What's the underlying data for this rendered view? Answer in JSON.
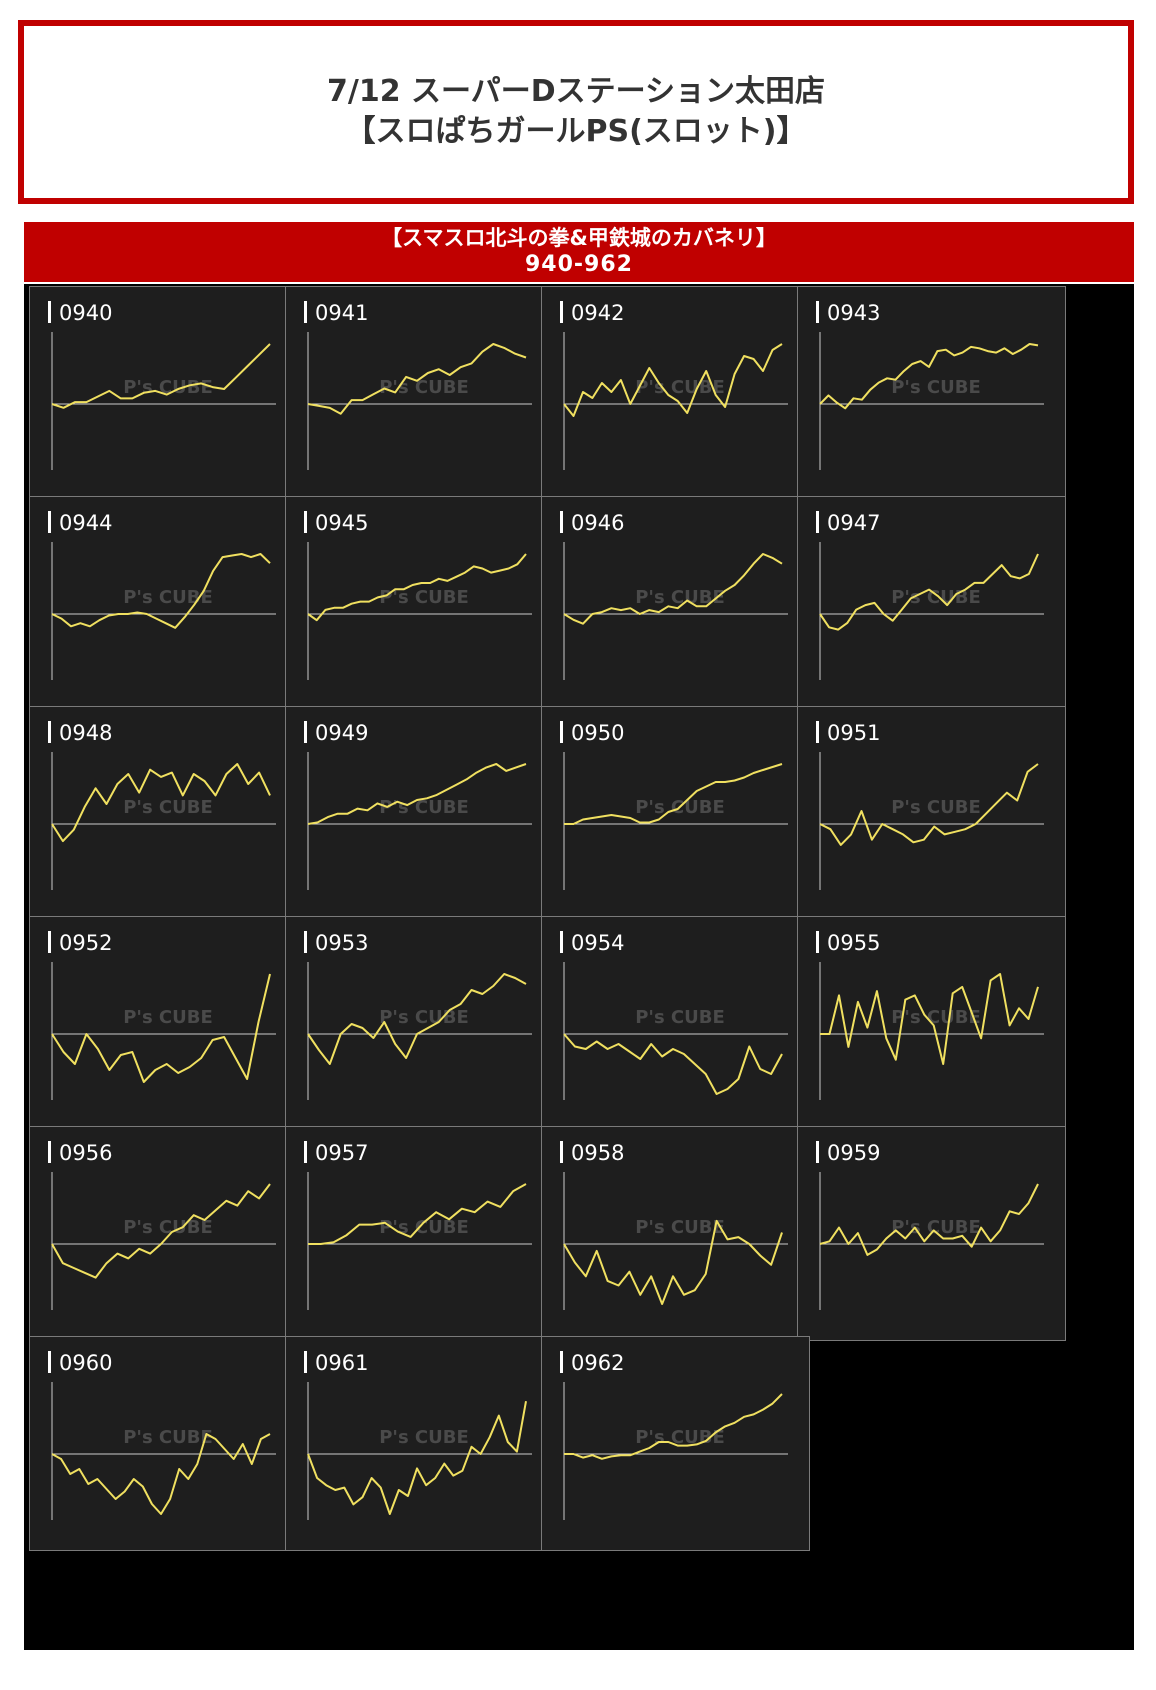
{
  "header": {
    "title_line1": "7/12 スーパーDステーション太田店",
    "title_line2": "【スロぱちガールPS(スロット)】"
  },
  "banner": {
    "machine": "【スマスロ北斗の拳&甲鉄城のカバネリ】",
    "range": "940-962"
  },
  "colors": {
    "frame": "#c00000",
    "tile_bg": "#1e1e1e",
    "line": "#f0e060",
    "axis": "#cccccc",
    "watermark": "#4a4a4a"
  },
  "watermark": "P's CUBE",
  "chart_data": [
    {
      "type": "line",
      "title": "0940",
      "values": [
        0,
        -2,
        1,
        1,
        4,
        7,
        3,
        3,
        6,
        7,
        5,
        8,
        10,
        11,
        9,
        8,
        14,
        20,
        26,
        32
      ]
    },
    {
      "type": "line",
      "title": "0941",
      "values": [
        0,
        -1,
        -2,
        -5,
        2,
        2,
        5,
        8,
        6,
        14,
        12,
        16,
        18,
        15,
        19,
        21,
        27,
        31,
        29,
        26,
        24
      ]
    },
    {
      "type": "line",
      "title": "0942",
      "values": [
        0,
        -4,
        4,
        2,
        7,
        4,
        8,
        0,
        6,
        12,
        7,
        3,
        1,
        -3,
        5,
        11,
        3,
        -1,
        10,
        16,
        15,
        11,
        18,
        20
      ]
    },
    {
      "type": "line",
      "title": "0943",
      "values": [
        0,
        6,
        1,
        -3,
        4,
        3,
        10,
        15,
        18,
        17,
        23,
        28,
        30,
        26,
        37,
        38,
        34,
        36,
        40,
        39,
        37,
        36,
        39,
        35,
        38,
        42,
        41
      ]
    },
    {
      "type": "line",
      "title": "0944",
      "values": [
        0,
        -3,
        -8,
        -6,
        -8,
        -4,
        -1,
        0,
        0,
        1,
        0,
        -3,
        -6,
        -9,
        -2,
        6,
        15,
        28,
        37,
        38,
        39,
        37,
        39,
        33
      ]
    },
    {
      "type": "line",
      "title": "0945",
      "values": [
        0,
        -3,
        2,
        3,
        3,
        5,
        6,
        6,
        8,
        9,
        12,
        12,
        14,
        15,
        15,
        17,
        16,
        18,
        20,
        23,
        22,
        20,
        21,
        22,
        24,
        29
      ]
    },
    {
      "type": "line",
      "title": "0946",
      "values": [
        0,
        -3,
        -5,
        0,
        1,
        3,
        2,
        3,
        0,
        2,
        1,
        4,
        3,
        7,
        4,
        4,
        8,
        12,
        15,
        20,
        26,
        31,
        29,
        26
      ]
    },
    {
      "type": "line",
      "title": "0947",
      "values": [
        0,
        -6,
        -7,
        -4,
        2,
        4,
        5,
        0,
        -3,
        2,
        7,
        9,
        11,
        8,
        4,
        9,
        11,
        14,
        14,
        18,
        22,
        17,
        16,
        18,
        27
      ]
    },
    {
      "type": "line",
      "title": "0948",
      "values": [
        0,
        -12,
        -4,
        12,
        25,
        14,
        28,
        35,
        22,
        38,
        33,
        36,
        20,
        35,
        30,
        20,
        35,
        42,
        28,
        36,
        20
      ]
    },
    {
      "type": "line",
      "title": "0949",
      "values": [
        0,
        1,
        4,
        6,
        6,
        9,
        8,
        12,
        10,
        13,
        11,
        14,
        15,
        17,
        20,
        23,
        26,
        30,
        33,
        35,
        31,
        33,
        35
      ]
    },
    {
      "type": "line",
      "title": "0950",
      "values": [
        0,
        0,
        3,
        4,
        5,
        6,
        5,
        4,
        1,
        1,
        3,
        8,
        10,
        16,
        22,
        25,
        28,
        28,
        29,
        31,
        34,
        36,
        38,
        40
      ]
    },
    {
      "type": "line",
      "title": "0951",
      "values": [
        0,
        -2,
        -8,
        -4,
        5,
        -6,
        0,
        -2,
        -4,
        -7,
        -6,
        -1,
        -4,
        -3,
        -2,
        0,
        4,
        8,
        12,
        9,
        20,
        23
      ]
    },
    {
      "type": "line",
      "title": "0952",
      "values": [
        0,
        -6,
        -10,
        0,
        -5,
        -12,
        -7,
        -6,
        -16,
        -12,
        -10,
        -13,
        -11,
        -8,
        -2,
        -1,
        -8,
        -15,
        4,
        20
      ]
    },
    {
      "type": "line",
      "title": "0953",
      "values": [
        0,
        -8,
        -15,
        0,
        5,
        3,
        -2,
        6,
        -5,
        -12,
        0,
        3,
        6,
        12,
        15,
        22,
        20,
        24,
        30,
        28,
        25
      ]
    },
    {
      "type": "line",
      "title": "0954",
      "values": [
        0,
        -5,
        -6,
        -3,
        -6,
        -4,
        -7,
        -10,
        -4,
        -9,
        -6,
        -8,
        -12,
        -16,
        -24,
        -22,
        -18,
        -5,
        -14,
        -16,
        -8
      ]
    },
    {
      "type": "line",
      "title": "0955",
      "values": [
        0,
        0,
        18,
        -6,
        15,
        3,
        20,
        -2,
        -12,
        16,
        18,
        9,
        4,
        -14,
        19,
        22,
        10,
        -2,
        25,
        28,
        4,
        12,
        7,
        22
      ]
    },
    {
      "type": "line",
      "title": "0956",
      "values": [
        0,
        -8,
        -10,
        -12,
        -14,
        -8,
        -4,
        -6,
        -2,
        -4,
        0,
        5,
        7,
        12,
        10,
        14,
        18,
        16,
        22,
        19,
        25
      ]
    },
    {
      "type": "line",
      "title": "0957",
      "values": [
        0,
        0,
        1,
        5,
        11,
        11,
        12,
        7,
        4,
        12,
        18,
        14,
        20,
        18,
        24,
        21,
        30,
        34
      ]
    },
    {
      "type": "line",
      "title": "0958",
      "values": [
        0,
        -8,
        -14,
        -3,
        -16,
        -18,
        -12,
        -22,
        -14,
        -26,
        -14,
        -22,
        -20,
        -13,
        10,
        2,
        3,
        0,
        -5,
        -9,
        5
      ]
    },
    {
      "type": "line",
      "title": "0959",
      "values": [
        0,
        1,
        6,
        0,
        4,
        -4,
        -2,
        2,
        5,
        2,
        6,
        1,
        5,
        2,
        2,
        3,
        -1,
        6,
        1,
        5,
        12,
        11,
        15,
        22
      ]
    },
    {
      "type": "line",
      "title": "0960",
      "values": [
        0,
        -2,
        -8,
        -6,
        -12,
        -10,
        -14,
        -18,
        -15,
        -10,
        -13,
        -20,
        -24,
        -18,
        -6,
        -10,
        -4,
        8,
        6,
        2,
        -2,
        4,
        -4,
        6,
        8
      ]
    },
    {
      "type": "line",
      "title": "0961",
      "values": [
        0,
        -20,
        -26,
        -30,
        -28,
        -42,
        -36,
        -20,
        -28,
        -50,
        -30,
        -35,
        -12,
        -26,
        -20,
        -8,
        -18,
        -14,
        6,
        0,
        14,
        32,
        10,
        2,
        44
      ]
    },
    {
      "type": "line",
      "title": "0962",
      "values": [
        0,
        0,
        -3,
        -1,
        -4,
        -2,
        -1,
        -1,
        2,
        5,
        10,
        10,
        7,
        7,
        8,
        11,
        18,
        23,
        26,
        31,
        33,
        37,
        42,
        50
      ]
    }
  ]
}
